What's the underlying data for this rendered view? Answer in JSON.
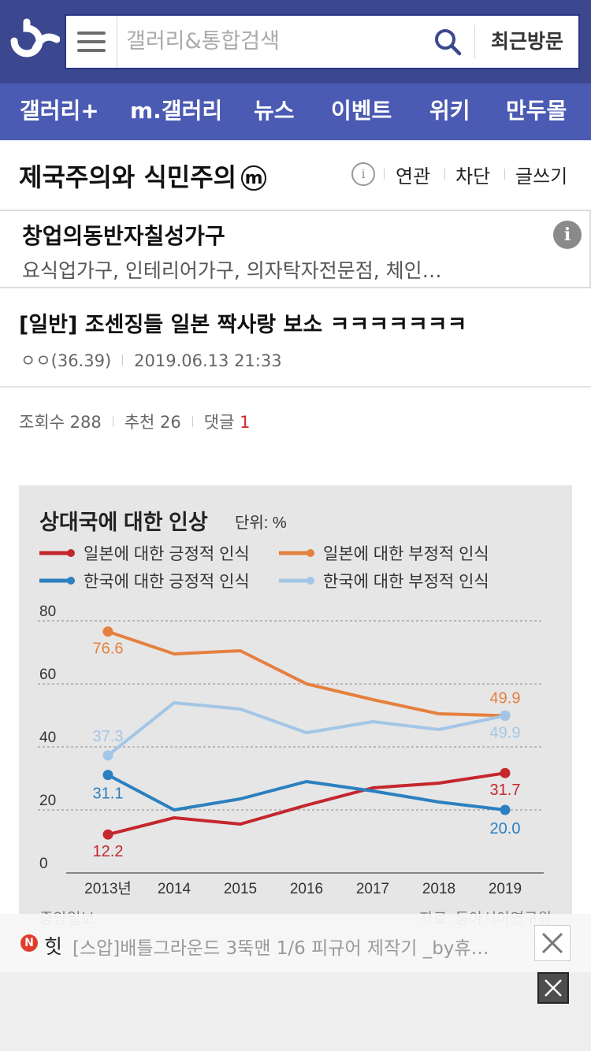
{
  "header": {
    "logo_icon": "dc-logo",
    "search_placeholder": "갤러리&통합검색",
    "recent_label": "최근방문"
  },
  "nav": {
    "items": [
      "갤러리+",
      "m.갤러리",
      "뉴스",
      "이벤트",
      "위키",
      "만두몰"
    ]
  },
  "gallery": {
    "title": "제국주의와 식민주의",
    "badge": "ⓜ",
    "links": [
      "연관",
      "차단",
      "글쓰기"
    ]
  },
  "ad": {
    "title": "창업의동반자칠성가구",
    "subtitle": "요식업가구, 인테리어가구, 의자탁자전문점, 체인…",
    "info": "i"
  },
  "post": {
    "title": "[일반] 조센징들 일본 짝사랑 보소 ㅋㅋㅋㅋㅋㅋㅋ",
    "author": "ㅇㅇ(36.39)",
    "date": "2019.06.13 21:33",
    "views_label": "조회수 288",
    "recommend_label": "추천 26",
    "comments_label": "댓글",
    "comments_count": "1"
  },
  "chart_data": {
    "type": "line",
    "title": "상대국에 대한 인상",
    "unit": "단위: %",
    "x": [
      "2013년",
      "2014",
      "2015",
      "2016",
      "2017",
      "2018",
      "2019"
    ],
    "ylim": [
      0,
      80
    ],
    "yticks": [
      0,
      20,
      40,
      60,
      80
    ],
    "grid": true,
    "legend_placement": "top",
    "series": [
      {
        "name": "일본에 대한 긍정적 인식",
        "color": "#c4272d",
        "values": [
          12.2,
          17.5,
          15.5,
          21.5,
          27.0,
          28.5,
          31.7
        ],
        "labels": [
          "12.2",
          "",
          "",
          "",
          "",
          "",
          "31.7"
        ]
      },
      {
        "name": "일본에 대한 부정적 인식",
        "color": "#e5803f",
        "values": [
          76.6,
          69.5,
          70.5,
          60.0,
          55.0,
          50.5,
          49.9
        ],
        "labels": [
          "76.6",
          "",
          "",
          "",
          "",
          "",
          "49.9"
        ]
      },
      {
        "name": "한국에 대한 긍정적 인식",
        "color": "#2b80c0",
        "values": [
          31.1,
          20.0,
          23.5,
          29.0,
          26.0,
          22.5,
          20.0
        ],
        "labels": [
          "31.1",
          "",
          "",
          "",
          "",
          "",
          "20.0"
        ]
      },
      {
        "name": "한국에 대한 부정적 인식",
        "color": "#a4c6e6",
        "values": [
          37.3,
          54.0,
          52.0,
          44.5,
          48.0,
          45.5,
          49.9
        ],
        "labels": [
          "37.3",
          "",
          "",
          "",
          "",
          "",
          "49.9"
        ]
      }
    ],
    "source_left": "중앙일보",
    "source_right": "자료: 동아시아연구원"
  },
  "footer": {
    "hit_label": "힛",
    "text": "[스압]배틀그라운드 3뚝맨 1/6 피규어 제작기 _by휴…"
  }
}
